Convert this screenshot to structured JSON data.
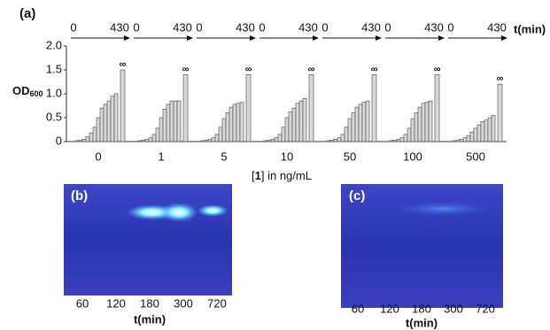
{
  "chart_data": {
    "type": "bar",
    "panel_label": "(a)",
    "time_start": "0",
    "time_end": "430",
    "time_label": "t(min)",
    "ylabel": "OD",
    "ylabel_subscript": "600",
    "xlabel_prefix": "[",
    "xlabel_bold": "1",
    "xlabel_suffix": "] in ng/mL",
    "categories": [
      "0",
      "1",
      "5",
      "10",
      "50",
      "100",
      "500"
    ],
    "bars": [
      [
        0.02,
        0.03,
        0.05,
        0.1,
        0.18,
        0.3,
        0.5,
        0.7,
        0.78,
        0.85,
        0.95,
        1.0
      ],
      [
        0.02,
        0.03,
        0.05,
        0.08,
        0.15,
        0.28,
        0.5,
        0.68,
        0.78,
        0.85,
        0.85,
        0.85
      ],
      [
        0.02,
        0.03,
        0.05,
        0.08,
        0.15,
        0.3,
        0.48,
        0.6,
        0.72,
        0.78,
        0.8,
        0.82
      ],
      [
        0.02,
        0.03,
        0.05,
        0.08,
        0.15,
        0.3,
        0.5,
        0.62,
        0.7,
        0.8,
        0.85,
        0.9
      ],
      [
        0.02,
        0.03,
        0.05,
        0.08,
        0.15,
        0.3,
        0.48,
        0.6,
        0.72,
        0.78,
        0.82,
        0.85
      ],
      [
        0.02,
        0.03,
        0.05,
        0.08,
        0.15,
        0.28,
        0.48,
        0.6,
        0.72,
        0.8,
        0.82,
        0.85
      ],
      [
        0.02,
        0.03,
        0.05,
        0.08,
        0.12,
        0.2,
        0.28,
        0.35,
        0.42,
        0.45,
        0.5,
        0.55
      ]
    ],
    "final_values": [
      1.5,
      1.4,
      1.4,
      1.4,
      1.4,
      1.4,
      1.2
    ],
    "final_label": "∞",
    "color": "#d9d9d9",
    "edgecolor": "#444444",
    "ylim": [
      0,
      2.0
    ],
    "yticks": [
      0,
      0.5,
      {
        "value": 1.0,
        "label": "1.0"
      },
      1.5,
      {
        "value": 2.0,
        "label": "2.0"
      }
    ]
  },
  "panels": {
    "b": {
      "label": "(b)",
      "lanes": [
        "60",
        "120",
        "180",
        "300",
        "720"
      ],
      "axis_label": "t(min)"
    },
    "c": {
      "label": "(c)",
      "lanes": [
        "60",
        "120",
        "180",
        "300",
        "720"
      ],
      "axis_label": "t(min)"
    }
  }
}
